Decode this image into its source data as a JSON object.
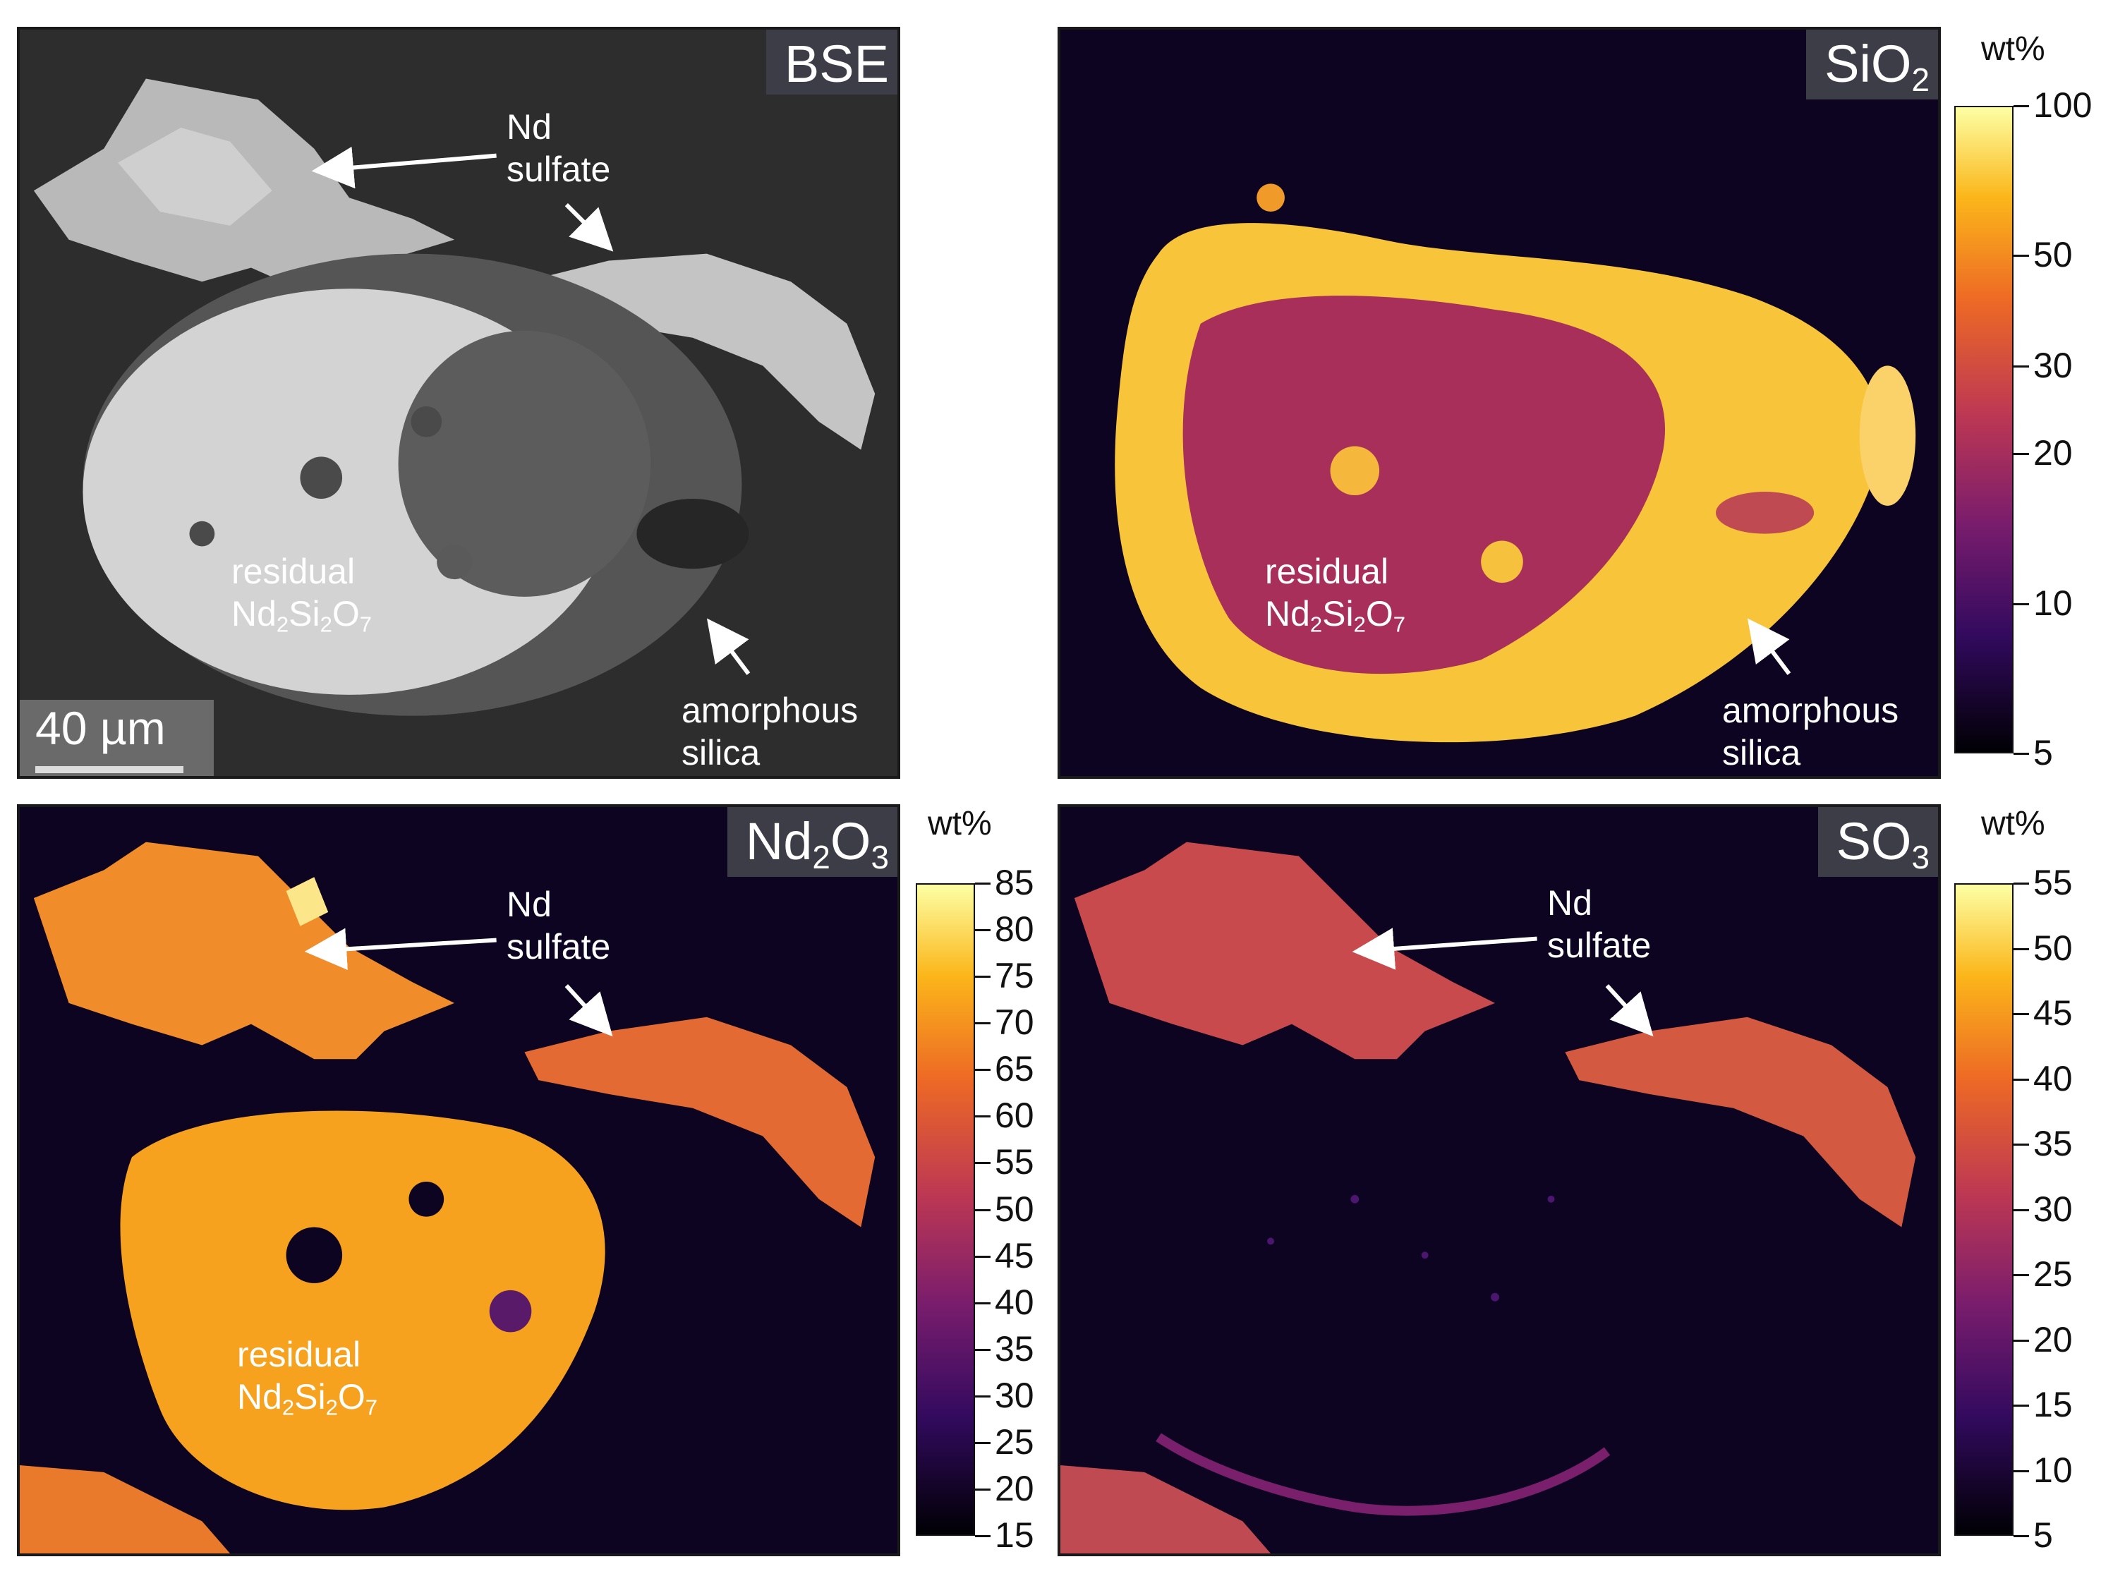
{
  "panels": {
    "bse": {
      "title": "BSE",
      "labels": {
        "nd_sulfate_1": "Nd",
        "nd_sulfate_2": "sulfate",
        "residual_1": "residual",
        "residual_2": "Nd",
        "residual_sub1": "2",
        "residual_mid": "Si",
        "residual_sub2": "2",
        "residual_end": "O",
        "residual_sub3": "7",
        "amorph_1": "amorphous",
        "amorph_2": "silica"
      },
      "scalebar": "40 µm"
    },
    "sio2": {
      "title_main": "SiO",
      "title_sub": "2",
      "labels": {
        "residual_1": "residual",
        "residual_2": "Nd",
        "residual_sub1": "2",
        "residual_mid": "Si",
        "residual_sub2": "2",
        "residual_end": "O",
        "residual_sub3": "7",
        "amorph_1": "amorphous",
        "amorph_2": "silica"
      },
      "colorbar": {
        "unit": "wt%",
        "scale": "log",
        "ticks": [
          "100",
          "50",
          "30",
          "20",
          "10",
          "5"
        ]
      }
    },
    "nd2o3": {
      "title_a": "Nd",
      "title_sub1": "2",
      "title_b": "O",
      "title_sub2": "3",
      "labels": {
        "nd_sulfate_1": "Nd",
        "nd_sulfate_2": "sulfate",
        "residual_1": "residual",
        "residual_2": "Nd",
        "residual_sub1": "2",
        "residual_mid": "Si",
        "residual_sub2": "2",
        "residual_end": "O",
        "residual_sub3": "7"
      },
      "colorbar": {
        "unit": "wt%",
        "scale": "linear",
        "ticks": [
          "85",
          "80",
          "75",
          "70",
          "65",
          "60",
          "55",
          "50",
          "45",
          "40",
          "35",
          "30",
          "25",
          "20",
          "15"
        ]
      }
    },
    "so3": {
      "title_main": "SO",
      "title_sub": "3",
      "labels": {
        "nd_sulfate_1": "Nd",
        "nd_sulfate_2": "sulfate"
      },
      "colorbar": {
        "unit": "wt%",
        "scale": "linear",
        "ticks": [
          "55",
          "50",
          "45",
          "40",
          "35",
          "30",
          "25",
          "20",
          "15",
          "10",
          "5"
        ]
      }
    }
  },
  "colors": {
    "map_background": "#0c0420",
    "inferno_low": "#000004",
    "inferno_mid": "#bc3754",
    "inferno_high": "#fcffa4",
    "bse_background": "#2f2f2f",
    "bse_bright": "#cfcfcf",
    "bse_rim": "#5a5a5a"
  }
}
